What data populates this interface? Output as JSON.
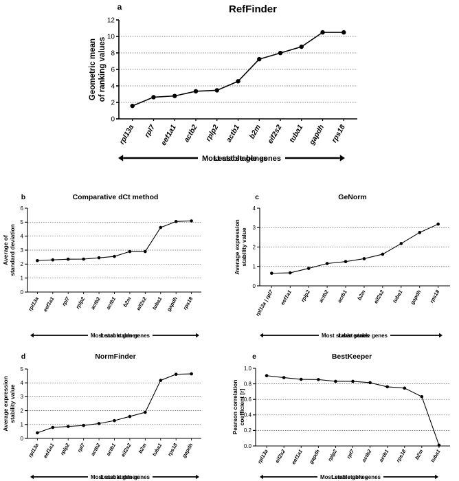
{
  "chart_data": [
    {
      "type": "line",
      "panel": "a",
      "title": "RefFinder",
      "ylabel_lines": [
        "Geometric mean",
        "of ranking values"
      ],
      "ylim": [
        0,
        12
      ],
      "yticks": [
        "0",
        "2",
        "4",
        "6",
        "8",
        "10",
        "12"
      ],
      "gridlines": [
        2,
        4,
        6,
        8,
        10
      ],
      "categories": [
        "rpl13a",
        "rpl7",
        "eef1a1",
        "actb2",
        "rplp2",
        "actb1",
        "b2m",
        "eif2s2",
        "tuba1",
        "gapdh",
        "rps18"
      ],
      "values": [
        1.57,
        2.63,
        2.78,
        3.35,
        3.46,
        4.56,
        7.24,
        7.99,
        8.75,
        10.49,
        10.49
      ],
      "most_stable": "Most stable genes",
      "least_stable": "Least stable genes"
    },
    {
      "type": "line",
      "panel": "b",
      "title": "Comparative dCt method",
      "ylabel_lines": [
        "Average of",
        "standard deviation"
      ],
      "ylim": [
        0,
        6
      ],
      "yticks": [
        "0",
        "1",
        "2",
        "3",
        "4",
        "5",
        "6"
      ],
      "gridlines": [
        1,
        2,
        3,
        4,
        5
      ],
      "categories": [
        "rpl13a",
        "eef1a1",
        "rpl7",
        "rplp2",
        "actb2",
        "actb1",
        "b2m",
        "eif2s2",
        "tuba1",
        "gapdh",
        "rps18"
      ],
      "values": [
        2.25,
        2.3,
        2.35,
        2.36,
        2.45,
        2.55,
        2.9,
        2.9,
        4.62,
        5.05,
        5.09
      ],
      "most_stable": "Most stable genes",
      "least_stable": "Least stable genes"
    },
    {
      "type": "line",
      "panel": "c",
      "title": "GeNorm",
      "ylabel_lines": [
        "Average expression",
        "stability value"
      ],
      "ylim": [
        0,
        4
      ],
      "yticks": [
        "0",
        "1",
        "2",
        "3",
        "4"
      ],
      "gridlines": [
        1,
        2,
        3
      ],
      "categories": [
        "rpl13a | rpl7",
        "eef1a1",
        "rplp2",
        "actb2",
        "actb1",
        "b2m",
        "eif2s2",
        "tuba1",
        "gapdh",
        "rps18"
      ],
      "values": [
        0.65,
        0.67,
        0.9,
        1.15,
        1.25,
        1.4,
        1.63,
        2.18,
        2.75,
        3.18
      ],
      "most_stable": "Most stable genes",
      "least_stable": "Least stable genes"
    },
    {
      "type": "line",
      "panel": "d",
      "title": "NormFinder",
      "ylabel_lines": [
        "Average expression",
        "stability value"
      ],
      "ylim": [
        0,
        5
      ],
      "yticks": [
        "0",
        "1",
        "2",
        "3",
        "4",
        "5"
      ],
      "gridlines": [
        1,
        2,
        3,
        4
      ],
      "categories": [
        "rpl13a",
        "eef1a1",
        "rplp2",
        "rpl7",
        "actb2",
        "actb1",
        "eif2s2",
        "b2m",
        "tuba1",
        "rps18",
        "gapdh"
      ],
      "values": [
        0.4,
        0.79,
        0.86,
        0.93,
        1.07,
        1.28,
        1.58,
        1.88,
        4.18,
        4.62,
        4.65
      ],
      "most_stable": "Most stable genes",
      "least_stable": "Least stable genes"
    },
    {
      "type": "line",
      "panel": "e",
      "title": "BestKeeper",
      "ylabel_lines": [
        "Pearson correlation",
        "coefficient [r]"
      ],
      "ylim": [
        0,
        1.0
      ],
      "yticks": [
        "0.0",
        "0.2",
        "0.4",
        "0.6",
        "0.8",
        "1.0"
      ],
      "gridlines": [
        0.2,
        0.4,
        0.6,
        0.8
      ],
      "categories": [
        "rpl13a",
        "eif2s2",
        "eef1a1",
        "gapdh",
        "rplp2",
        "rpl7",
        "actb2",
        "actb1",
        "rps18",
        "b2m",
        "tuba1"
      ],
      "values": [
        0.905,
        0.88,
        0.858,
        0.855,
        0.832,
        0.832,
        0.815,
        0.762,
        0.745,
        0.635,
        0.01
      ],
      "most_stable": "Most stable genes",
      "least_stable": "Least stable genes"
    }
  ]
}
